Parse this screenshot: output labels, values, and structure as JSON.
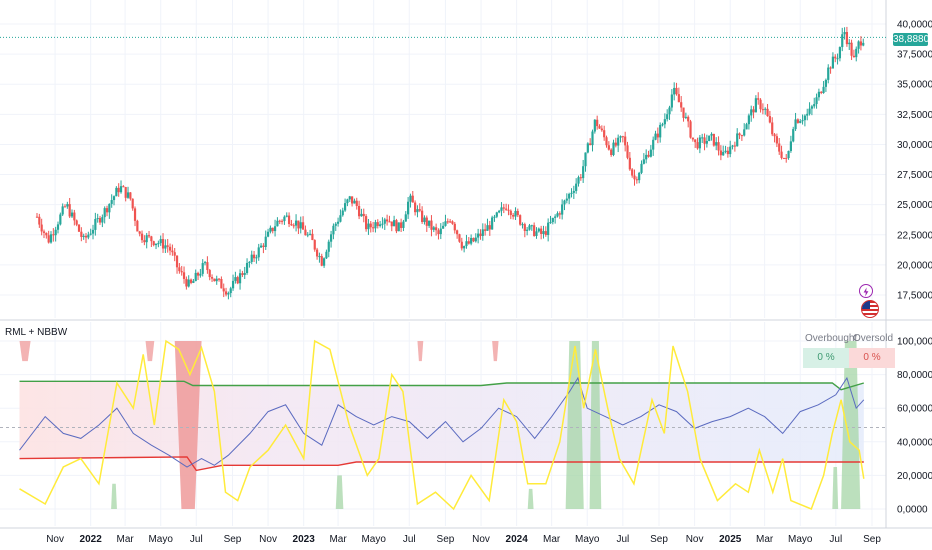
{
  "indicator_title": "RML + NBBW",
  "table": {
    "overbought_label": "Overbought",
    "oversold_label": "Oversold",
    "overbought_value": "0 %",
    "oversold_value": "0 %"
  },
  "last_price_label": "38,8880",
  "icons": [
    "lightning-icon",
    "us-flag-icon"
  ],
  "colors": {
    "up": "#26a69a",
    "down": "#ef5350",
    "upper_band": "#43a047",
    "lower_band": "#e53935",
    "oscillator": "#ffeb3b",
    "rml_line": "#5b6bc0",
    "overbought_fill": "#a5d6a7",
    "oversold_fill": "#ef9a9a"
  },
  "chart_data": [
    {
      "type": "candlestick",
      "title": "",
      "x_ticks": [
        "Nov",
        "2022",
        "Mar",
        "Mayo",
        "Jul",
        "Sep",
        "Nov",
        "2023",
        "Mar",
        "Mayo",
        "Jul",
        "Sep",
        "Nov",
        "2024",
        "Mar",
        "Mayo",
        "Jul",
        "Sep",
        "Nov",
        "2025",
        "Mar",
        "Mayo",
        "Jul",
        "Sep"
      ],
      "y_ticks": [
        "40,0000",
        "37,5000",
        "35,0000",
        "32,5000",
        "30,0000",
        "27,5000",
        "25,0000",
        "22,5000",
        "20,0000",
        "17,5000"
      ],
      "ylim": [
        16000,
        40500
      ],
      "last_price": 38.888,
      "path_anchors": [
        [
          "2021-10-01",
          24.0
        ],
        [
          "2021-10-20",
          22.0
        ],
        [
          "2021-11-20",
          25.0
        ],
        [
          "2021-12-20",
          22.0
        ],
        [
          "2022-01-25",
          24.5
        ],
        [
          "2022-02-20",
          26.5
        ],
        [
          "2022-03-10",
          25.5
        ],
        [
          "2022-03-25",
          22.5
        ],
        [
          "2022-04-20",
          22.0
        ],
        [
          "2022-05-15",
          21.5
        ],
        [
          "2022-06-01",
          19.5
        ],
        [
          "2022-06-20",
          18.2
        ],
        [
          "2022-07-15",
          20.0
        ],
        [
          "2022-08-01",
          18.8
        ],
        [
          "2022-08-25",
          17.8
        ],
        [
          "2022-09-20",
          19.5
        ],
        [
          "2022-10-20",
          21.5
        ],
        [
          "2022-11-15",
          23.5
        ],
        [
          "2022-12-01",
          24.0
        ],
        [
          "2022-12-20",
          23.5
        ],
        [
          "2023-01-15",
          22.0
        ],
        [
          "2023-02-01",
          20.3
        ],
        [
          "2023-02-20",
          23.0
        ],
        [
          "2023-03-20",
          25.5
        ],
        [
          "2023-04-01",
          25.0
        ],
        [
          "2023-04-20",
          23.0
        ],
        [
          "2023-05-20",
          24.0
        ],
        [
          "2023-06-15",
          23.0
        ],
        [
          "2023-07-01",
          25.5
        ],
        [
          "2023-07-20",
          24.0
        ],
        [
          "2023-08-20",
          22.5
        ],
        [
          "2023-09-10",
          24.0
        ],
        [
          "2023-10-01",
          21.5
        ],
        [
          "2023-10-20",
          22.0
        ],
        [
          "2023-11-20",
          23.5
        ],
        [
          "2023-12-15",
          25.0
        ],
        [
          "2024-01-01",
          24.0
        ],
        [
          "2024-01-20",
          23.0
        ],
        [
          "2024-02-15",
          22.5
        ],
        [
          "2024-03-15",
          24.5
        ],
        [
          "2024-04-20",
          27.5
        ],
        [
          "2024-05-15",
          32.0
        ],
        [
          "2024-06-10",
          29.5
        ],
        [
          "2024-07-01",
          30.5
        ],
        [
          "2024-07-20",
          27.0
        ],
        [
          "2024-08-15",
          29.5
        ],
        [
          "2024-09-10",
          32.0
        ],
        [
          "2024-09-25",
          34.5
        ],
        [
          "2024-10-10",
          33.0
        ],
        [
          "2024-11-01",
          30.0
        ],
        [
          "2024-12-01",
          30.5
        ],
        [
          "2024-12-20",
          29.0
        ],
        [
          "2025-01-20",
          31.0
        ],
        [
          "2025-02-15",
          33.5
        ],
        [
          "2025-03-01",
          33.0
        ],
        [
          "2025-03-20",
          30.0
        ],
        [
          "2025-04-08",
          28.5
        ],
        [
          "2025-04-20",
          32.0
        ],
        [
          "2025-05-15",
          32.5
        ],
        [
          "2025-06-01",
          34.0
        ],
        [
          "2025-06-20",
          36.5
        ],
        [
          "2025-07-05",
          37.5
        ],
        [
          "2025-07-15",
          39.5
        ],
        [
          "2025-08-01",
          37.0
        ],
        [
          "2025-08-10",
          38.5
        ],
        [
          "2025-08-18",
          38.9
        ]
      ]
    },
    {
      "type": "line",
      "title": "RML + NBBW",
      "ylim": [
        -5,
        105
      ],
      "y_ticks": [
        "100,0000",
        "80,0000",
        "60,0000",
        "40,0000",
        "20,0000",
        "0,0000"
      ],
      "midline": 48.5,
      "series": [
        {
          "role": "upper_band",
          "points": [
            [
              "2021-09-01",
              76
            ],
            [
              "2022-06-10",
              76
            ],
            [
              "2022-06-25",
              73.5
            ],
            [
              "2023-11-01",
              73.5
            ],
            [
              "2023-12-15",
              75
            ],
            [
              "2025-06-25",
              75
            ],
            [
              "2025-07-10",
              71
            ],
            [
              "2025-08-18",
              75
            ]
          ]
        },
        {
          "role": "lower_band",
          "points": [
            [
              "2021-09-01",
              30
            ],
            [
              "2022-06-15",
              31
            ],
            [
              "2022-07-01",
              23
            ],
            [
              "2022-08-15",
              26
            ],
            [
              "2023-03-01",
              26
            ],
            [
              "2023-04-01",
              28
            ],
            [
              "2025-08-18",
              28
            ]
          ]
        },
        {
          "role": "oscillator",
          "points": [
            [
              "2021-09-01",
              12
            ],
            [
              "2021-10-15",
              3
            ],
            [
              "2021-11-15",
              25
            ],
            [
              "2021-12-15",
              30
            ],
            [
              "2022-01-15",
              15
            ],
            [
              "2022-02-15",
              75
            ],
            [
              "2022-03-15",
              60
            ],
            [
              "2022-04-01",
              92
            ],
            [
              "2022-04-20",
              50
            ],
            [
              "2022-05-10",
              100
            ],
            [
              "2022-06-01",
              95
            ],
            [
              "2022-06-20",
              80
            ],
            [
              "2022-07-10",
              96
            ],
            [
              "2022-08-01",
              70
            ],
            [
              "2022-08-20",
              10
            ],
            [
              "2022-09-10",
              5
            ],
            [
              "2022-10-01",
              25
            ],
            [
              "2022-11-01",
              35
            ],
            [
              "2022-12-01",
              50
            ],
            [
              "2023-01-01",
              30
            ],
            [
              "2023-01-20",
              100
            ],
            [
              "2023-02-15",
              95
            ],
            [
              "2023-03-20",
              50
            ],
            [
              "2023-04-20",
              20
            ],
            [
              "2023-05-10",
              30
            ],
            [
              "2023-06-01",
              80
            ],
            [
              "2023-06-20",
              70
            ],
            [
              "2023-07-15",
              3
            ],
            [
              "2023-08-15",
              10
            ],
            [
              "2023-09-15",
              0
            ],
            [
              "2023-10-15",
              20
            ],
            [
              "2023-11-15",
              5
            ],
            [
              "2023-12-10",
              65
            ],
            [
              "2024-01-01",
              52
            ],
            [
              "2024-01-20",
              15
            ],
            [
              "2024-02-20",
              15
            ],
            [
              "2024-03-15",
              40
            ],
            [
              "2024-04-10",
              97
            ],
            [
              "2024-04-25",
              60
            ],
            [
              "2024-05-15",
              95
            ],
            [
              "2024-06-05",
              60
            ],
            [
              "2024-06-25",
              30
            ],
            [
              "2024-07-20",
              15
            ],
            [
              "2024-08-20",
              65
            ],
            [
              "2024-09-10",
              45
            ],
            [
              "2024-09-25",
              97
            ],
            [
              "2024-10-20",
              70
            ],
            [
              "2024-11-10",
              30
            ],
            [
              "2024-12-10",
              5
            ],
            [
              "2025-01-10",
              15
            ],
            [
              "2025-02-01",
              10
            ],
            [
              "2025-02-20",
              35
            ],
            [
              "2025-03-15",
              10
            ],
            [
              "2025-04-01",
              30
            ],
            [
              "2025-04-15",
              5
            ],
            [
              "2025-05-20",
              0
            ],
            [
              "2025-06-10",
              20
            ],
            [
              "2025-06-25",
              45
            ],
            [
              "2025-07-10",
              65
            ],
            [
              "2025-07-25",
              40
            ],
            [
              "2025-08-10",
              35
            ],
            [
              "2025-08-18",
              18
            ]
          ]
        },
        {
          "role": "rml_line",
          "points": [
            [
              "2021-09-01",
              35
            ],
            [
              "2021-10-15",
              55
            ],
            [
              "2021-11-15",
              45
            ],
            [
              "2021-12-15",
              42
            ],
            [
              "2022-01-15",
              50
            ],
            [
              "2022-02-15",
              60
            ],
            [
              "2022-03-15",
              45
            ],
            [
              "2022-04-15",
              38
            ],
            [
              "2022-05-15",
              32
            ],
            [
              "2022-06-15",
              25
            ],
            [
              "2022-07-10",
              30
            ],
            [
              "2022-08-01",
              26
            ],
            [
              "2022-08-25",
              32
            ],
            [
              "2022-10-01",
              45
            ],
            [
              "2022-11-01",
              58
            ],
            [
              "2022-12-01",
              62
            ],
            [
              "2023-01-01",
              45
            ],
            [
              "2023-02-01",
              38
            ],
            [
              "2023-03-01",
              62
            ],
            [
              "2023-04-01",
              55
            ],
            [
              "2023-05-01",
              50
            ],
            [
              "2023-06-01",
              55
            ],
            [
              "2023-07-01",
              52
            ],
            [
              "2023-08-01",
              42
            ],
            [
              "2023-09-01",
              52
            ],
            [
              "2023-10-01",
              40
            ],
            [
              "2023-11-01",
              48
            ],
            [
              "2023-12-01",
              60
            ],
            [
              "2024-01-01",
              55
            ],
            [
              "2024-02-01",
              42
            ],
            [
              "2024-03-01",
              55
            ],
            [
              "2024-04-01",
              70
            ],
            [
              "2024-04-15",
              78
            ],
            [
              "2024-05-01",
              60
            ],
            [
              "2024-06-01",
              55
            ],
            [
              "2024-07-01",
              50
            ],
            [
              "2024-08-01",
              55
            ],
            [
              "2024-09-01",
              62
            ],
            [
              "2024-10-01",
              58
            ],
            [
              "2024-11-01",
              48
            ],
            [
              "2024-12-01",
              52
            ],
            [
              "2025-01-01",
              55
            ],
            [
              "2025-02-01",
              60
            ],
            [
              "2025-03-01",
              55
            ],
            [
              "2025-04-01",
              45
            ],
            [
              "2025-05-01",
              58
            ],
            [
              "2025-06-01",
              62
            ],
            [
              "2025-07-01",
              68
            ],
            [
              "2025-07-20",
              78
            ],
            [
              "2025-08-05",
              60
            ],
            [
              "2025-08-18",
              65
            ]
          ]
        }
      ],
      "oversold_spikes": [
        [
          "2021-09-01",
          "2021-09-20",
          100
        ],
        [
          "2022-04-05",
          "2022-04-20",
          100
        ],
        [
          "2022-05-25",
          "2022-07-10",
          100
        ],
        [
          "2023-07-15",
          "2023-07-25",
          100
        ],
        [
          "2023-11-20",
          "2023-12-01",
          100
        ]
      ],
      "overbought_spikes": [
        [
          "2024-03-25",
          "2024-04-25",
          100
        ],
        [
          "2024-05-05",
          "2024-05-25",
          100
        ],
        [
          "2025-07-10",
          "2025-08-12",
          100
        ]
      ],
      "small_green_spikes": [
        [
          "2022-02-05",
          "2022-02-15",
          15
        ],
        [
          "2023-02-25",
          "2023-03-10",
          20
        ],
        [
          "2024-01-20",
          "2024-01-30",
          12
        ],
        [
          "2025-06-25",
          "2025-07-05",
          25
        ]
      ]
    }
  ]
}
